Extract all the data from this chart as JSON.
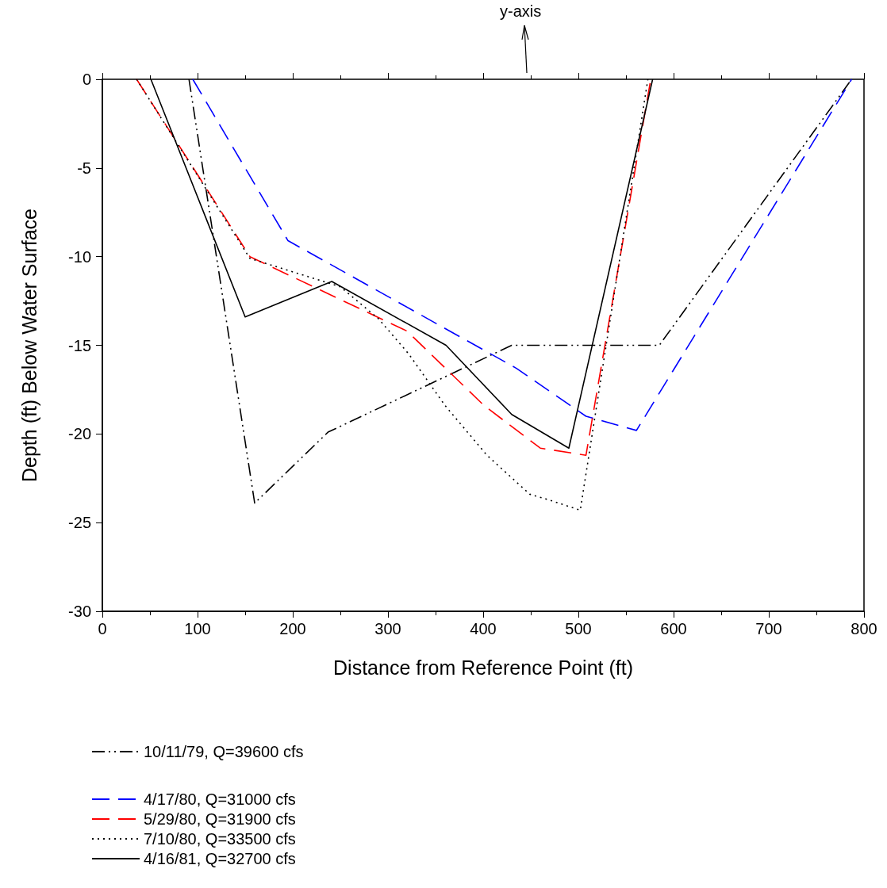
{
  "chart_data": {
    "type": "line",
    "xlabel": "Distance from Reference Point (ft)",
    "ylabel": "Depth (ft) Below Water Surface",
    "xlim": [
      0,
      800
    ],
    "xticks": [
      0,
      100,
      200,
      300,
      400,
      500,
      600,
      700,
      800
    ],
    "ylim": [
      -30,
      0
    ],
    "yticks": [
      -30,
      -25,
      -20,
      -15,
      -10,
      -5,
      0
    ],
    "grid": false,
    "legend": "bottom left",
    "marker": "none",
    "annotations": [
      "y-axis"
    ],
    "series": [
      {
        "name": "10/11/79, Q=39600 cfs",
        "color": "#000000",
        "line_style": "dashdot",
        "x": [
          91,
          160,
          237,
          430,
          585,
          787
        ],
        "values": [
          0,
          -23.9,
          -19.9,
          -15,
          -15,
          0
        ]
      },
      {
        "name": "4/17/80, Q=31000 cfs",
        "color": "#0000ff",
        "line_style": "dashed",
        "x": [
          95,
          195,
          435,
          508,
          561,
          787
        ],
        "values": [
          0,
          -9.1,
          -16.3,
          -19,
          -19.8,
          0
        ]
      },
      {
        "name": "5/29/80, Q=31900 cfs",
        "color": "#ff0000",
        "line_style": "dashed",
        "x": [
          36,
          155,
          320,
          401,
          460,
          508,
          576
        ],
        "values": [
          0,
          -10,
          -14.2,
          -18.4,
          -20.8,
          -21.2,
          0
        ]
      },
      {
        "name": "7/10/80, Q=33500 cfs",
        "color": "#000000",
        "line_style": "dotted",
        "x": [
          36,
          155,
          250,
          290,
          322,
          360,
          404,
          449,
          468,
          502,
          573
        ],
        "values": [
          0,
          -10.1,
          -11.7,
          -13.5,
          -15.5,
          -18.4,
          -21.2,
          -23.4,
          -23.7,
          -24.3,
          0
        ]
      },
      {
        "name": "4/16/81, Q=32700 cfs",
        "color": "#000000",
        "line_style": "solid",
        "x": [
          51,
          150,
          241,
          361,
          430,
          490,
          578
        ],
        "values": [
          0,
          -13.4,
          -11.4,
          -15,
          -18.9,
          -20.8,
          0
        ]
      }
    ]
  }
}
